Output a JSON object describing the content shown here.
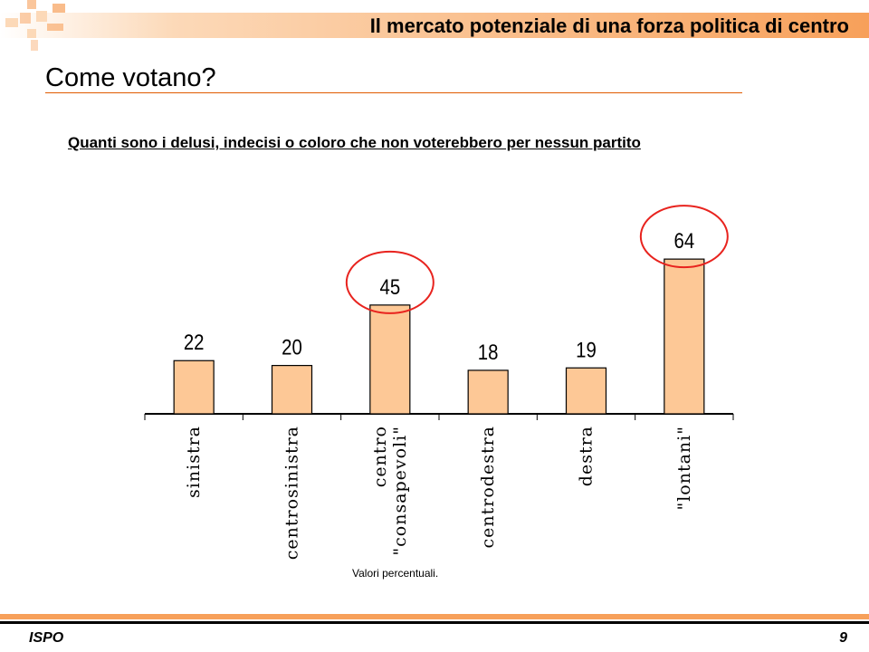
{
  "header": {
    "title": "Il mercato potenziale di una forza politica di centro"
  },
  "slide": {
    "title": "Come votano?"
  },
  "chart_data": {
    "type": "bar",
    "title": "Quanti sono i delusi, indecisi o coloro che non voterebbero per nessun partito",
    "categories": [
      "sinistra",
      "centrosinistra",
      "centro \"consapevoli\"",
      "centrodestra",
      "destra",
      "\"lontani\""
    ],
    "values": [
      22,
      20,
      45,
      18,
      19,
      64
    ],
    "highlighted": [
      "centro \"consapevoli\"",
      "\"lontani\""
    ],
    "bar_color": "#fdc896",
    "highlight_color": "#e8231e",
    "ylim": [
      0,
      70
    ],
    "grid": false,
    "legend": "none"
  },
  "note": "Valori  percentuali.",
  "footer": {
    "left": "ISPO",
    "page": "9"
  },
  "colors": {
    "accent": "#f7a05a",
    "rule": "#e05a00"
  }
}
